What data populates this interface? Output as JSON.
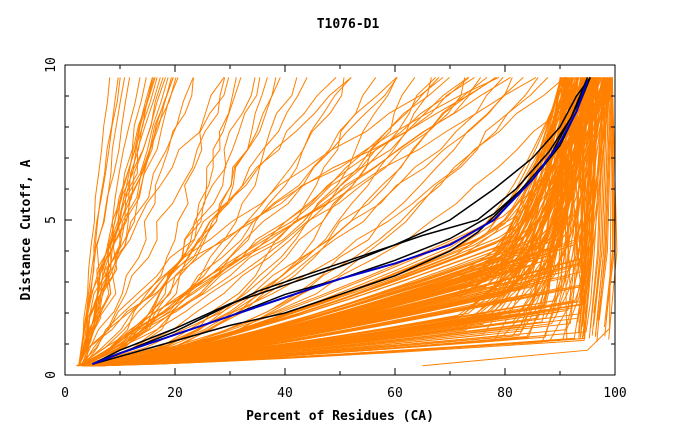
{
  "chart_data": {
    "type": "line",
    "title": "T1076-D1",
    "xlabel": "Percent of Residues (CA)",
    "ylabel": "Distance Cutoff, A",
    "xlim": [
      0,
      100
    ],
    "ylim": [
      0,
      10
    ],
    "x_ticks": [
      0,
      20,
      40,
      60,
      80,
      100
    ],
    "y_ticks": [
      0,
      5,
      10
    ],
    "grid": false,
    "colors": {
      "models": "#ff8000",
      "reference": "#000000",
      "highlight": "#0000cc",
      "axis": "#000000"
    },
    "series": [
      {
        "name": "black-1",
        "color": "#000000",
        "x": [
          5,
          10,
          20,
          30,
          40,
          50,
          60,
          70,
          78,
          85,
          90,
          93,
          95.5
        ],
        "y": [
          0.35,
          0.8,
          1.5,
          2.3,
          2.9,
          3.5,
          4.2,
          5.0,
          6.0,
          7.0,
          8.0,
          9.0,
          9.6
        ]
      },
      {
        "name": "black-2",
        "color": "#000000",
        "x": [
          5,
          10,
          20,
          30,
          40,
          50,
          60,
          70,
          78,
          85,
          90,
          93,
          95.5
        ],
        "y": [
          0.35,
          0.7,
          1.3,
          1.9,
          2.6,
          3.1,
          3.7,
          4.4,
          5.2,
          6.3,
          7.4,
          8.5,
          9.6
        ]
      },
      {
        "name": "black-3",
        "color": "#000000",
        "x": [
          5,
          10,
          20,
          28,
          35,
          45,
          55,
          65,
          75,
          82,
          88,
          92,
          95.5
        ],
        "y": [
          0.35,
          0.7,
          1.4,
          2.1,
          2.7,
          3.3,
          3.9,
          4.5,
          5.0,
          6.0,
          7.2,
          8.3,
          9.6
        ]
      },
      {
        "name": "black-4",
        "color": "#000000",
        "x": [
          5,
          10,
          20,
          30,
          40,
          50,
          60,
          70,
          75,
          82,
          88,
          92,
          95
        ],
        "y": [
          0.35,
          0.6,
          1.1,
          1.6,
          2.0,
          2.6,
          3.2,
          4.0,
          4.6,
          5.8,
          7.0,
          8.3,
          9.6
        ]
      },
      {
        "name": "blue-highlight",
        "color": "#0000cc",
        "x": [
          5,
          10,
          20,
          30,
          40,
          50,
          60,
          70,
          78,
          85,
          90,
          93,
          95
        ],
        "y": [
          0.35,
          0.7,
          1.3,
          1.9,
          2.5,
          3.1,
          3.6,
          4.2,
          5.0,
          6.3,
          7.5,
          8.5,
          9.5
        ]
      }
    ]
  }
}
